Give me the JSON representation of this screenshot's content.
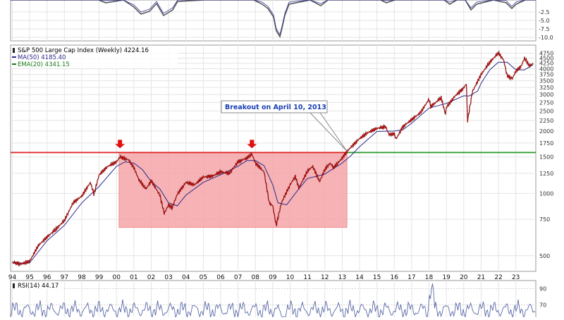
{
  "chart_data": [
    {
      "type": "line",
      "panel": "indicator-top",
      "ytick_labels": [
        "-2.5",
        "-5.0",
        "-7.5",
        "-10.0"
      ],
      "yticks": [
        -2.5,
        -5.0,
        -7.5,
        -10.0
      ],
      "ylim": [
        -11,
        1
      ]
    },
    {
      "type": "line",
      "panel": "price",
      "title": "S&P 500 Large Cap Index (Weekly) 4224.16",
      "scale": "log",
      "grid": true,
      "legend_position": "top-left",
      "colors": {
        "price": "#cc0000",
        "ma50": "#2e2a8a",
        "ema20": "#1a7a1a",
        "resistance": "#e02020",
        "support": "#2a9a2a",
        "box": "#f4a5a8",
        "arrow": "#dd1111"
      },
      "legend": [
        {
          "label": "S&P 500 Large Cap Index (Weekly) 4224.16",
          "color": "#000000"
        },
        {
          "label": "MA(50) 4185.40",
          "color": "#2e2a8a"
        },
        {
          "label": "EMA(20) 4341.15",
          "color": "#1a7a1a"
        }
      ],
      "x_tick_labels": [
        "94",
        "95",
        "96",
        "97",
        "98",
        "99",
        "00",
        "01",
        "02",
        "03",
        "04",
        "05",
        "06",
        "07",
        "08",
        "09",
        "10",
        "11",
        "12",
        "13",
        "14",
        "15",
        "16",
        "17",
        "18",
        "19",
        "20",
        "21",
        "22",
        "23"
      ],
      "x_ticks": [
        1994,
        1995,
        1996,
        1997,
        1998,
        1999,
        2000,
        2001,
        2002,
        2003,
        2004,
        2005,
        2006,
        2007,
        2008,
        2009,
        2010,
        2011,
        2012,
        2013,
        2014,
        2015,
        2016,
        2017,
        2018,
        2019,
        2020,
        2021,
        2022,
        2023
      ],
      "xlim": [
        1993.9,
        2024.15
      ],
      "y_tick_labels": [
        "4750",
        "4500",
        "4250",
        "4000",
        "3750",
        "3500",
        "3250",
        "3000",
        "2750",
        "2500",
        "2250",
        "2000",
        "1750",
        "1500",
        "1250",
        "1000",
        "750",
        "500"
      ],
      "y_ticks": [
        4750,
        4500,
        4250,
        4000,
        3750,
        3500,
        3250,
        3000,
        2750,
        2500,
        2250,
        2000,
        1750,
        1500,
        1250,
        1000,
        750,
        500
      ],
      "ylim": [
        420,
        5200
      ],
      "series": [
        {
          "x": [
            1994.0,
            1994.5,
            1995.0,
            1995.5,
            1996.0,
            1996.5,
            1997.0,
            1997.5,
            1998.0,
            1998.5,
            1998.7,
            1999.0,
            1999.5,
            2000.0,
            2000.2,
            2000.7,
            2001.0,
            2001.3,
            2001.7,
            2002.0,
            2002.5,
            2002.75,
            2003.0,
            2003.2,
            2003.5,
            2004.0,
            2004.5,
            2005.0,
            2005.5,
            2006.0,
            2006.5,
            2007.0,
            2007.5,
            2007.8,
            2008.0,
            2008.5,
            2008.8,
            2009.0,
            2009.2,
            2009.5,
            2010.0,
            2010.3,
            2010.5,
            2011.0,
            2011.3,
            2011.7,
            2012.0,
            2012.3,
            2012.5,
            2013.0,
            2013.27,
            2013.5,
            2014.0,
            2014.5,
            2015.0,
            2015.5,
            2015.7,
            2016.0,
            2016.1,
            2016.5,
            2017.0,
            2017.5,
            2018.0,
            2018.1,
            2018.7,
            2018.95,
            2019.0,
            2019.5,
            2020.0,
            2020.15,
            2020.22,
            2020.5,
            2021.0,
            2021.5,
            2022.0,
            2022.3,
            2022.5,
            2022.8,
            2023.0,
            2023.3,
            2023.5,
            2023.8,
            2024.0
          ],
          "y": [
            465,
            455,
            470,
            560,
            615,
            670,
            740,
            900,
            970,
            1130,
            990,
            1230,
            1350,
            1420,
            1500,
            1450,
            1330,
            1160,
            1050,
            1150,
            980,
            800,
            880,
            850,
            990,
            1130,
            1100,
            1200,
            1210,
            1270,
            1250,
            1420,
            1480,
            1550,
            1400,
            1270,
            900,
            870,
            700,
            900,
            1100,
            1210,
            1060,
            1280,
            1350,
            1140,
            1300,
            1400,
            1330,
            1480,
            1590,
            1670,
            1840,
            1970,
            2060,
            2100,
            1920,
            1940,
            1830,
            2100,
            2270,
            2450,
            2850,
            2620,
            2900,
            2400,
            2600,
            2950,
            3230,
            3380,
            2240,
            3100,
            3750,
            4300,
            4770,
            4400,
            3700,
            3580,
            3900,
            4100,
            4500,
            4120,
            4250
          ]
        },
        {
          "x": [
            1994.0,
            1995.0,
            1996.0,
            1997.0,
            1998.0,
            1999.0,
            2000.0,
            2000.5,
            2001.0,
            2001.5,
            2002.0,
            2002.5,
            2003.0,
            2003.5,
            2004.0,
            2005.0,
            2006.0,
            2007.0,
            2007.5,
            2008.0,
            2008.5,
            2009.0,
            2009.3,
            2009.8,
            2010.5,
            2011.0,
            2011.7,
            2012.0,
            2012.5,
            2013.0,
            2013.5,
            2014.0,
            2015.0,
            2016.0,
            2016.5,
            2017.0,
            2018.0,
            2019.0,
            2020.0,
            2020.3,
            2020.8,
            2021.0,
            2021.5,
            2022.0,
            2022.5,
            2023.0,
            2023.5,
            2024.0
          ],
          "y": [
            460,
            462,
            590,
            700,
            900,
            1080,
            1350,
            1420,
            1400,
            1300,
            1140,
            1050,
            900,
            870,
            980,
            1130,
            1230,
            1350,
            1440,
            1440,
            1360,
            1100,
            900,
            880,
            1050,
            1180,
            1220,
            1240,
            1320,
            1400,
            1520,
            1680,
            1990,
            2000,
            2030,
            2180,
            2580,
            2720,
            2960,
            2950,
            3120,
            3400,
            3950,
            4300,
            4300,
            3950,
            3950,
            4185
          ]
        }
      ],
      "resistance": {
        "y": 1575,
        "x_start": 1993.9,
        "x_end": 2013.27
      },
      "support": {
        "y": 1575,
        "x_start": 2013.27,
        "x_end": 2024.15
      },
      "range_box": {
        "x_start": 2000.15,
        "x_end": 2013.27,
        "y_top": 1575,
        "y_bottom": 685
      },
      "peak_arrows": [
        {
          "x": 2000.2,
          "y": 1575
        },
        {
          "x": 2007.8,
          "y": 1575
        }
      ],
      "annotations": [
        {
          "text": "Breakout on April 10, 2013",
          "x": 2013.27,
          "y": 1575
        }
      ]
    },
    {
      "type": "line",
      "panel": "rsi",
      "legend": [
        {
          "label": "RSI(14) 44.17",
          "color": "#000000"
        }
      ],
      "ytick_labels": [
        "90",
        "70"
      ],
      "yticks": [
        90,
        70
      ],
      "ylim": [
        55,
        100
      ]
    }
  ]
}
